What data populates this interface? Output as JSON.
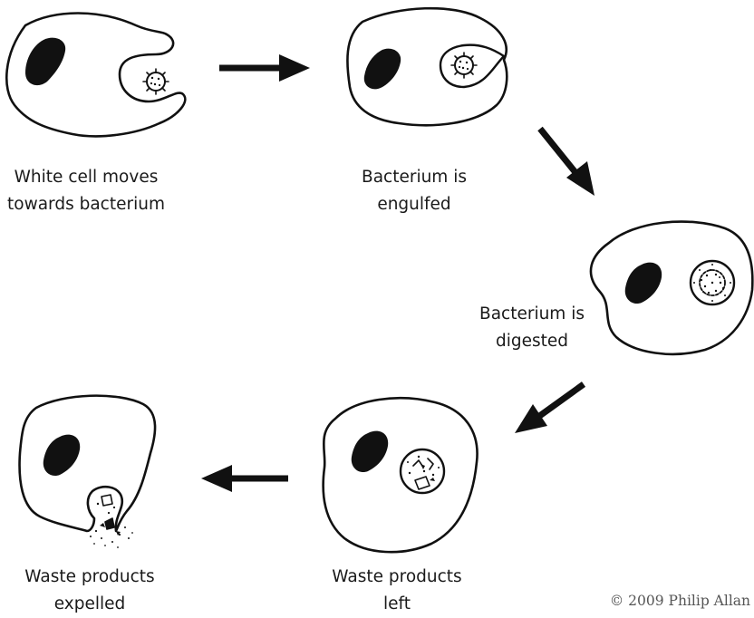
{
  "stages": [
    {
      "caption_line1": "White cell moves",
      "caption_line2": "towards bacterium"
    },
    {
      "caption_line1": "Bacterium is",
      "caption_line2": "engulfed"
    },
    {
      "caption_line1": "Bacterium is",
      "caption_line2": "digested"
    },
    {
      "caption_line1": "Waste products",
      "caption_line2": "left"
    },
    {
      "caption_line1": "Waste products",
      "caption_line2": "expelled"
    }
  ],
  "copyright": "© 2009 Philip Allan",
  "colors": {
    "ink": "#111111",
    "caption": "#1a1a1a",
    "copyright": "#555555"
  }
}
